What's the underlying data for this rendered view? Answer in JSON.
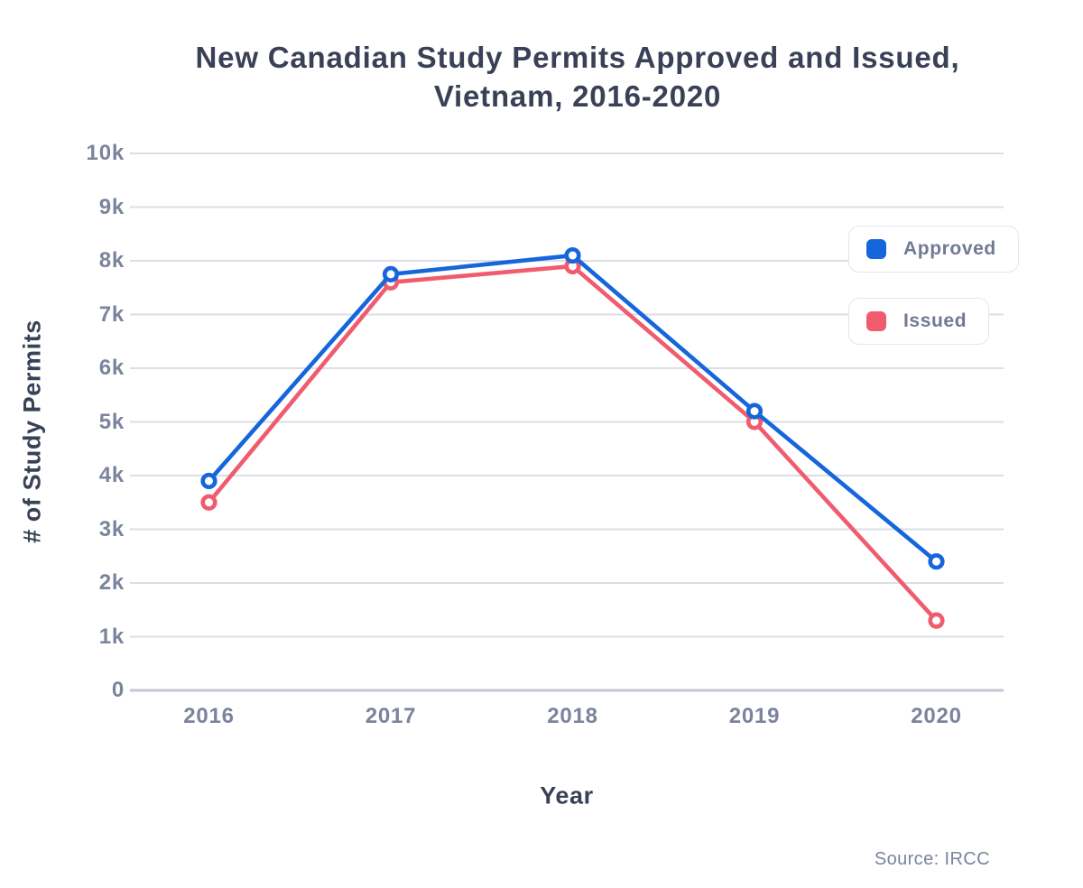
{
  "chart_data": {
    "type": "line",
    "title": "New Canadian Study Permits Approved and Issued, Vietnam, 2016-2020",
    "title_lines": [
      "New Canadian Study Permits Approved and Issued,",
      "Vietnam, 2016-2020"
    ],
    "xlabel": "Year",
    "ylabel": "# of Study Permits",
    "categories": [
      "2016",
      "2017",
      "2018",
      "2019",
      "2020"
    ],
    "series": [
      {
        "name": "Approved",
        "color": "#1666DB",
        "values": [
          3900,
          7750,
          8100,
          5200,
          2400
        ]
      },
      {
        "name": "Issued",
        "color": "#F05C6E",
        "values": [
          3500,
          7600,
          7900,
          5000,
          1300
        ]
      }
    ],
    "ylim": [
      0,
      10000
    ],
    "ytick_values": [
      0,
      1000,
      2000,
      3000,
      4000,
      5000,
      6000,
      7000,
      8000,
      9000,
      10000
    ],
    "ytick_labels": [
      "0",
      "1k",
      "2k",
      "3k",
      "4k",
      "5k",
      "6k",
      "7k",
      "8k",
      "9k",
      "10k"
    ],
    "grid": "horizontal-only",
    "legend_position": "inside-top-right",
    "source": "Source: IRCC"
  },
  "colors": {
    "title_text": "#3A4156",
    "tick_text": "#7B849C",
    "legend_text": "#707A92",
    "gridline": "#DBDEE5",
    "baseline": "#C4C8D3",
    "approved": "#1666DB",
    "issued": "#F05C6E",
    "background": "#FFFFFF"
  }
}
